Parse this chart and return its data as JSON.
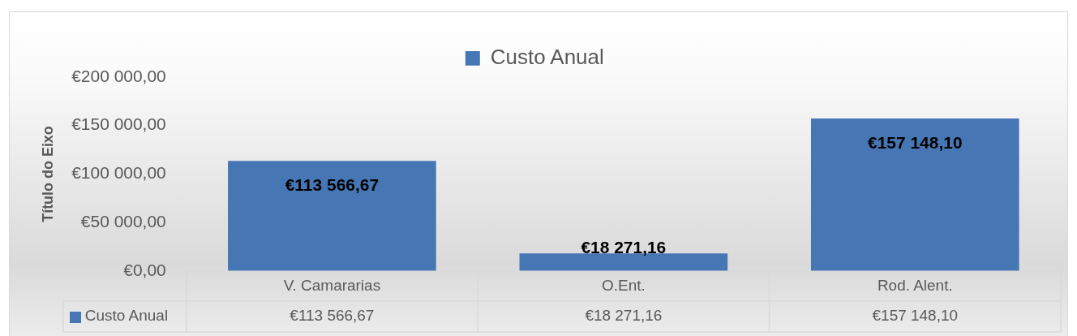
{
  "chart_data": {
    "type": "bar",
    "ylabel": "Título do Eixo",
    "categories": [
      "V. Camararias",
      "O.Ent.",
      "Rod. Alent."
    ],
    "series": [
      {
        "name": "Custo Anual",
        "color": "#4676b4",
        "values": [
          113566.67,
          18271.16,
          157148.1
        ],
        "value_labels": [
          "€113 566,67",
          "€18 271,16",
          "€157 148,10"
        ]
      }
    ],
    "ylim": [
      0,
      200000
    ],
    "yticks": [
      {
        "value": 0,
        "label": "€0,00"
      },
      {
        "value": 50000,
        "label": "€50 000,00"
      },
      {
        "value": 100000,
        "label": "€100 000,00"
      },
      {
        "value": 150000,
        "label": "€150 000,00"
      },
      {
        "value": 200000,
        "label": "€200 000,00"
      }
    ],
    "grid": false,
    "legend": "top"
  }
}
